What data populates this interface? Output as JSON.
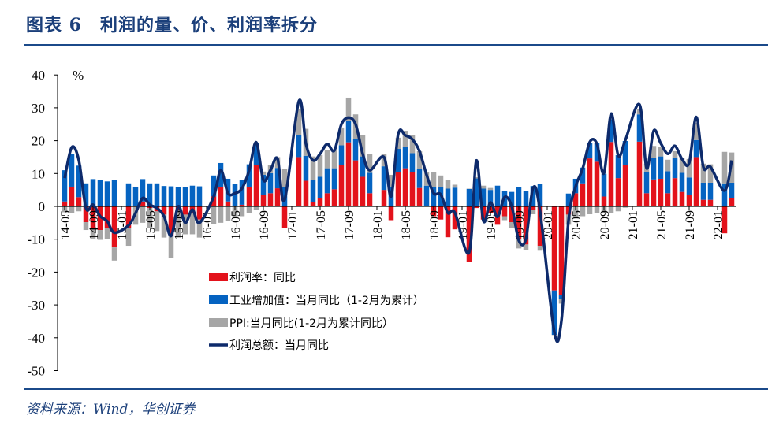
{
  "title": "图表 6　利润的量、价、利润率拆分",
  "source": "资料来源：Wind，华创证券",
  "chart_data": {
    "type": "bar",
    "stacked": true,
    "unit_label": "%",
    "ylim": [
      -50,
      40
    ],
    "yticks": [
      40,
      30,
      20,
      10,
      0,
      -10,
      -20,
      -30,
      -40,
      -50
    ],
    "xlabel": "",
    "ylabel": "%",
    "legend_position": "bottom-center-inside",
    "months": [
      "14-05",
      "14-06",
      "14-07",
      "14-08",
      "14-09",
      "14-10",
      "14-11",
      "14-12",
      "15-01",
      "15-02",
      "15-03",
      "15-04",
      "15-05",
      "15-06",
      "15-07",
      "15-08",
      "15-09",
      "15-10",
      "15-11",
      "15-12",
      "16-01",
      "16-02",
      "16-03",
      "16-04",
      "16-05",
      "16-06",
      "16-07",
      "16-08",
      "16-09",
      "16-10",
      "16-11",
      "16-12",
      "17-01",
      "17-02",
      "17-03",
      "17-04",
      "17-05",
      "17-06",
      "17-07",
      "17-08",
      "17-09",
      "17-10",
      "17-11",
      "17-12",
      "18-01",
      "18-02",
      "18-03",
      "18-04",
      "18-05",
      "18-06",
      "18-07",
      "18-08",
      "18-09",
      "18-10",
      "18-11",
      "18-12",
      "19-01",
      "19-02",
      "19-03",
      "19-04",
      "19-05",
      "19-06",
      "19-07",
      "19-08",
      "19-09",
      "19-10",
      "19-11",
      "19-12",
      "20-01",
      "20-02",
      "20-03",
      "20-04",
      "20-05",
      "20-06",
      "20-07",
      "20-08",
      "20-09",
      "20-10",
      "20-11",
      "20-12",
      "21-01",
      "21-02",
      "21-03",
      "21-04",
      "21-05",
      "21-06",
      "21-07",
      "21-08",
      "21-09",
      "21-10",
      "21-11",
      "21-12",
      "22-01",
      "22-02",
      "22-03"
    ],
    "tick_labels": [
      "14-05",
      "14-09",
      "15-01",
      "15-05",
      "15-09",
      "16-01",
      "16-05",
      "16-09",
      "17-01",
      "17-05",
      "17-09",
      "18-01",
      "18-05",
      "18-09",
      "19-01",
      "19-05",
      "19-09",
      "20-01",
      "20-05",
      "20-09",
      "21-01",
      "21-05",
      "21-09",
      "22-01"
    ],
    "series": [
      {
        "name": "利润率：同比",
        "type": "bar",
        "color": "#e3121b",
        "values": [
          1.5,
          6,
          2.8,
          -4.8,
          -7,
          -7.2,
          -6.6,
          -12.5,
          null,
          -6.5,
          0,
          1.5,
          -0.5,
          -1.5,
          -2.5,
          -8.8,
          -1,
          -2.5,
          -2,
          -4,
          null,
          3,
          6,
          1.5,
          0,
          0.5,
          6,
          12.5,
          3.5,
          4,
          5.5,
          -6.5,
          null,
          15,
          7.8,
          1.2,
          2.5,
          4,
          5.2,
          12.6,
          19.5,
          14,
          9,
          4,
          null,
          5,
          -4.2,
          10.5,
          11.6,
          10.4,
          5.6,
          0.2,
          -3,
          -4,
          -9.4,
          -7,
          null,
          -17,
          -0.5,
          -4,
          -2,
          -5.6,
          -3,
          -4.8,
          -10,
          -11.6,
          -1,
          -12,
          null,
          -25.6,
          -27,
          -2.5,
          4,
          7,
          14.6,
          13.6,
          3,
          19.6,
          8.6,
          12.6,
          null,
          19.7,
          4,
          8.2,
          8.4,
          4,
          8.6,
          4.4,
          3.6,
          15,
          2,
          2,
          null,
          -8.2,
          2.4
        ]
      },
      {
        "name": "工业增加值：当月同比（1-2月为累计）",
        "type": "bar",
        "color": "#0563c1",
        "values": [
          9.5,
          10,
          9.6,
          7,
          8.3,
          8,
          7.6,
          8,
          null,
          7,
          6,
          6.8,
          7,
          7,
          6.2,
          6.1,
          5.9,
          5.9,
          6.3,
          6.1,
          null,
          6.4,
          7.2,
          6.9,
          6.8,
          7.5,
          6.8,
          6.9,
          6.1,
          6.1,
          6.2,
          6,
          null,
          6.6,
          7.6,
          6.8,
          6.5,
          7.6,
          6.4,
          6,
          6.6,
          6.4,
          6.2,
          6.2,
          null,
          7.2,
          6,
          7,
          6.6,
          5.8,
          5.8,
          6.1,
          5.8,
          5.9,
          5.4,
          5.7,
          null,
          5.3,
          8.5,
          5.4,
          5,
          6.3,
          4.8,
          4.4,
          5.8,
          4.7,
          6.2,
          6.9,
          null,
          -13.5,
          -1.1,
          3.9,
          4.4,
          4.8,
          4.8,
          5.6,
          6.9,
          6.9,
          7,
          7.3,
          null,
          8.3,
          6.4,
          6.6,
          6.8,
          6.7,
          6.2,
          5.8,
          5.2,
          5.2,
          5.2,
          5.2,
          null,
          7,
          4.8
        ]
      },
      {
        "name": "PPI:当月同比(1-2月为累计同比）",
        "type": "bar",
        "color": "#a6a6a6",
        "values": [
          -1.8,
          -2,
          -1.5,
          -2.4,
          -2.8,
          -3,
          -3.4,
          -4,
          null,
          -5.5,
          -5.6,
          -5,
          -6,
          -6,
          -7,
          -7,
          -8.5,
          -6,
          -6.5,
          -5.5,
          null,
          -5.5,
          -5,
          -4.5,
          -3.5,
          -3,
          -2,
          -1,
          1,
          2.4,
          3.3,
          5.5,
          null,
          8,
          8.2,
          7.2,
          6.6,
          5.5,
          5.6,
          5.4,
          7,
          7.6,
          6.6,
          5.8,
          null,
          3.8,
          3.6,
          3.4,
          4.8,
          5.6,
          5.4,
          4.1,
          4.6,
          3.5,
          2.7,
          0.9,
          null,
          0.1,
          0.4,
          0.9,
          0.6,
          0,
          -1.2,
          -1.7,
          -2.8,
          -1.6,
          -1.4,
          -1.5,
          null,
          -0.1,
          -1.5,
          -3.1,
          -3.7,
          -3,
          -2.4,
          -2,
          -2.1,
          -2.1,
          -1.5,
          -0.4,
          null,
          1.7,
          2.6,
          3.6,
          3,
          3.5,
          2,
          4.6,
          5.6,
          5.2,
          5.8,
          5.6,
          null,
          9.6,
          9.2
        ]
      },
      {
        "name": "利润总额：当月同比",
        "type": "line",
        "color": "#0d2a6b",
        "values": [
          8.6,
          18,
          14,
          -0.5,
          0.5,
          -3,
          -4.5,
          -8,
          null,
          -5.8,
          -2,
          2.5,
          0.5,
          -0.5,
          -3,
          -9,
          0,
          -5,
          -1,
          -5,
          null,
          3,
          11,
          4,
          4,
          5.5,
          11,
          19.5,
          8,
          11,
          14.5,
          2,
          null,
          32,
          19,
          14,
          16,
          19,
          17,
          25,
          27,
          25,
          16,
          11,
          null,
          15,
          3,
          22,
          21.6,
          20.4,
          16.8,
          9.6,
          4,
          3.6,
          -2,
          -2,
          null,
          -14,
          13.9,
          -4.4,
          1.2,
          -3.2,
          2.8,
          0,
          -10.4,
          -9.9,
          5.6,
          -1.6,
          null,
          -38.3,
          -34.9,
          -4.3,
          6,
          11.5,
          19.6,
          19.1,
          10.1,
          28.2,
          15.5,
          20.1,
          null,
          31,
          11.6,
          23,
          19.2,
          16,
          18.4,
          14.4,
          13.2,
          27.2,
          12,
          12,
          null,
          4.8,
          14
        ]
      }
    ]
  }
}
